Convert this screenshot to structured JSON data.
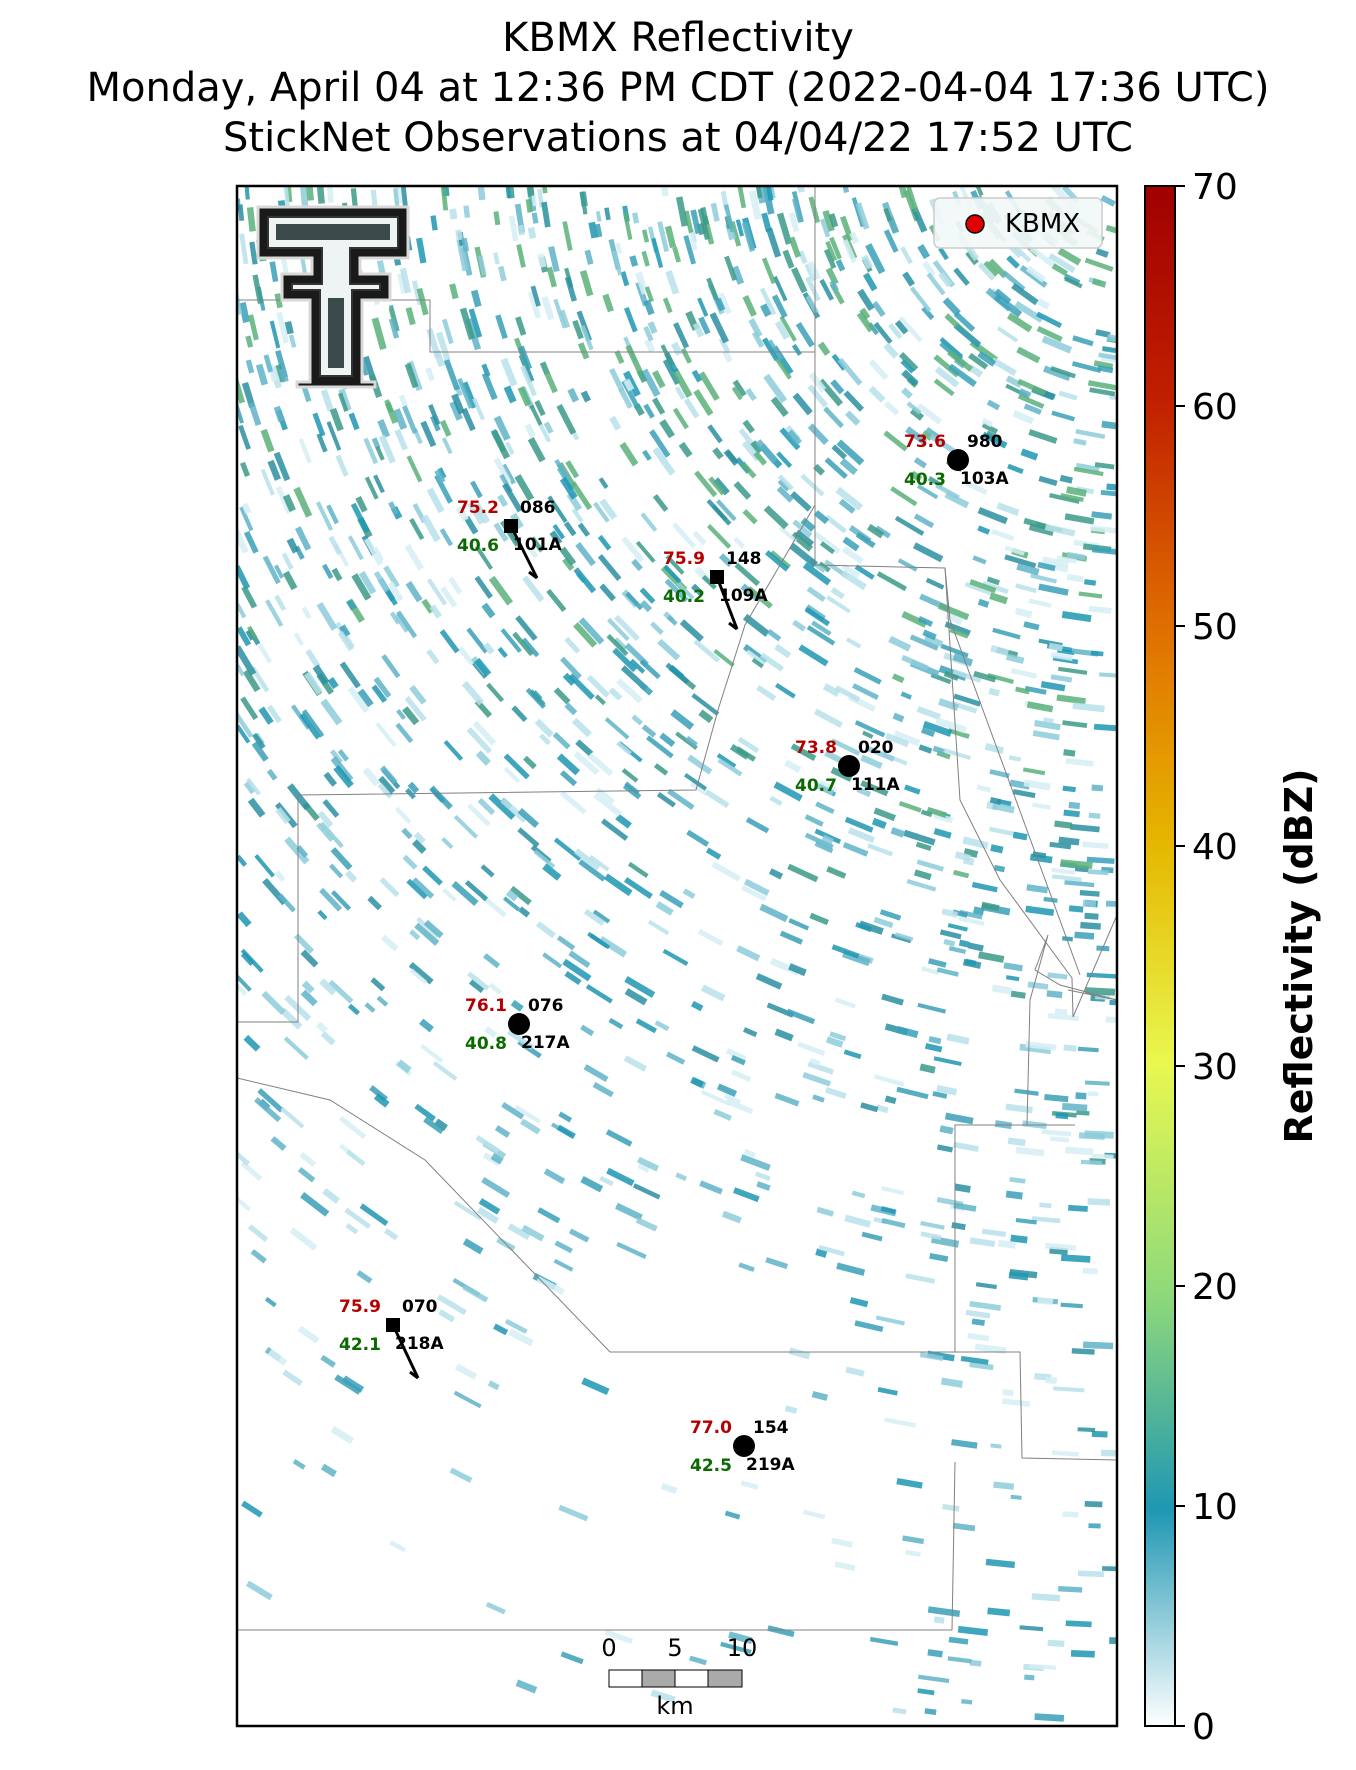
{
  "title": {
    "line1": "KBMX Reflectivity",
    "line2": "Monday, April 04 at 12:36 PM CDT (2022-04-04 17:36 UTC)",
    "line3": "StickNet Observations at 04/04/22 17:52 UTC"
  },
  "legend": {
    "label": "KBMX",
    "marker_color": "#e00000"
  },
  "colorbar": {
    "label": "Reflectivity (dBZ)",
    "ticks": [
      "0",
      "10",
      "20",
      "30",
      "40",
      "50",
      "60",
      "70"
    ],
    "range": [
      0,
      70
    ]
  },
  "scalebar": {
    "ticks": [
      "0",
      "5",
      "10"
    ],
    "unit": "km"
  },
  "logo": {
    "name": "texas-tech-double-t-logo"
  },
  "stations": [
    {
      "id": "101A",
      "temp": "75.2",
      "dew": "40.6",
      "code": "086",
      "marker": "square"
    },
    {
      "id": "109A",
      "temp": "75.9",
      "dew": "40.2",
      "code": "148",
      "marker": "square"
    },
    {
      "id": "103A",
      "temp": "73.6",
      "dew": "40.3",
      "code": "980",
      "marker": "circle"
    },
    {
      "id": "111A",
      "temp": "73.8",
      "dew": "40.7",
      "code": "020",
      "marker": "circle"
    },
    {
      "id": "217A",
      "temp": "76.1",
      "dew": "40.8",
      "code": "076",
      "marker": "circle"
    },
    {
      "id": "218A",
      "temp": "75.9",
      "dew": "42.1",
      "code": "070",
      "marker": "square"
    },
    {
      "id": "219A",
      "temp": "77.0",
      "dew": "42.5",
      "code": "154",
      "marker": "circle"
    }
  ],
  "colors": {
    "reflectivity_low": "#ffffff",
    "reflectivity_10": "#1f97b3",
    "reflectivity_20": "#8fd97a",
    "reflectivity_30": "#e8f850",
    "reflectivity_40": "#e6b800",
    "reflectivity_50": "#e07000",
    "reflectivity_70": "#a00000",
    "temp_text": "#b40000",
    "dew_text": "#0a6a00"
  }
}
